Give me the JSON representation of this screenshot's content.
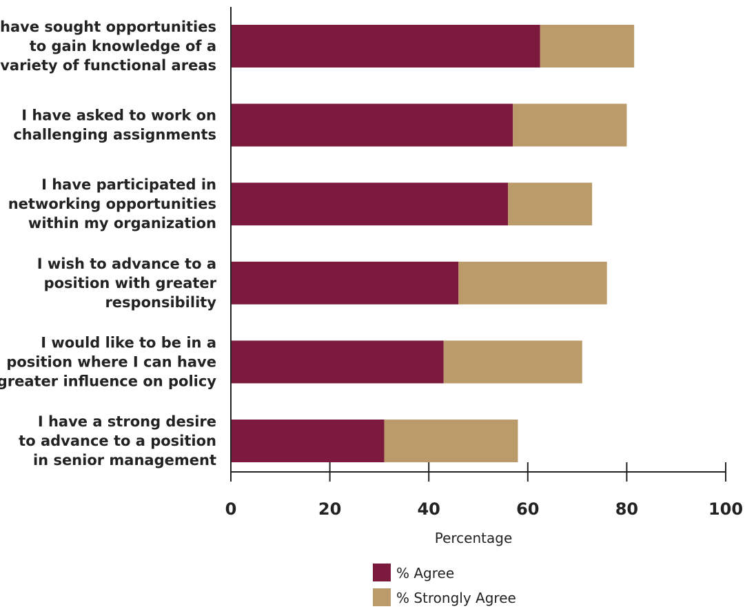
{
  "chart_data": {
    "type": "bar",
    "orientation": "horizontal",
    "stacked": true,
    "categories": [
      [
        "I have sought opportunities",
        "to gain knowledge of a",
        "variety of functional areas"
      ],
      [
        "I have asked to work on",
        "challenging assignments"
      ],
      [
        "I have participated in",
        "networking opportunities",
        "within my organization"
      ],
      [
        "I wish to advance to a",
        "position with greater",
        "responsibility"
      ],
      [
        "I would like to be in a",
        "position where I can have",
        "greater influence on policy"
      ],
      [
        "I have a strong desire",
        "to advance to a position",
        "in senior management"
      ]
    ],
    "series": [
      {
        "name": "% Agree",
        "color": "#7b1a3c",
        "values": [
          62.5,
          57,
          56,
          46,
          43,
          31
        ]
      },
      {
        "name": "% Strongly Agree",
        "color": "#bc9b6a",
        "values": [
          19,
          23,
          17,
          30,
          28,
          27
        ]
      }
    ],
    "xlabel": "Percentage",
    "xlim": [
      0,
      100
    ],
    "xticks": [
      "0",
      "20",
      "40",
      "60",
      "80",
      "100"
    ],
    "legend_position": "bottom",
    "grid": false
  }
}
